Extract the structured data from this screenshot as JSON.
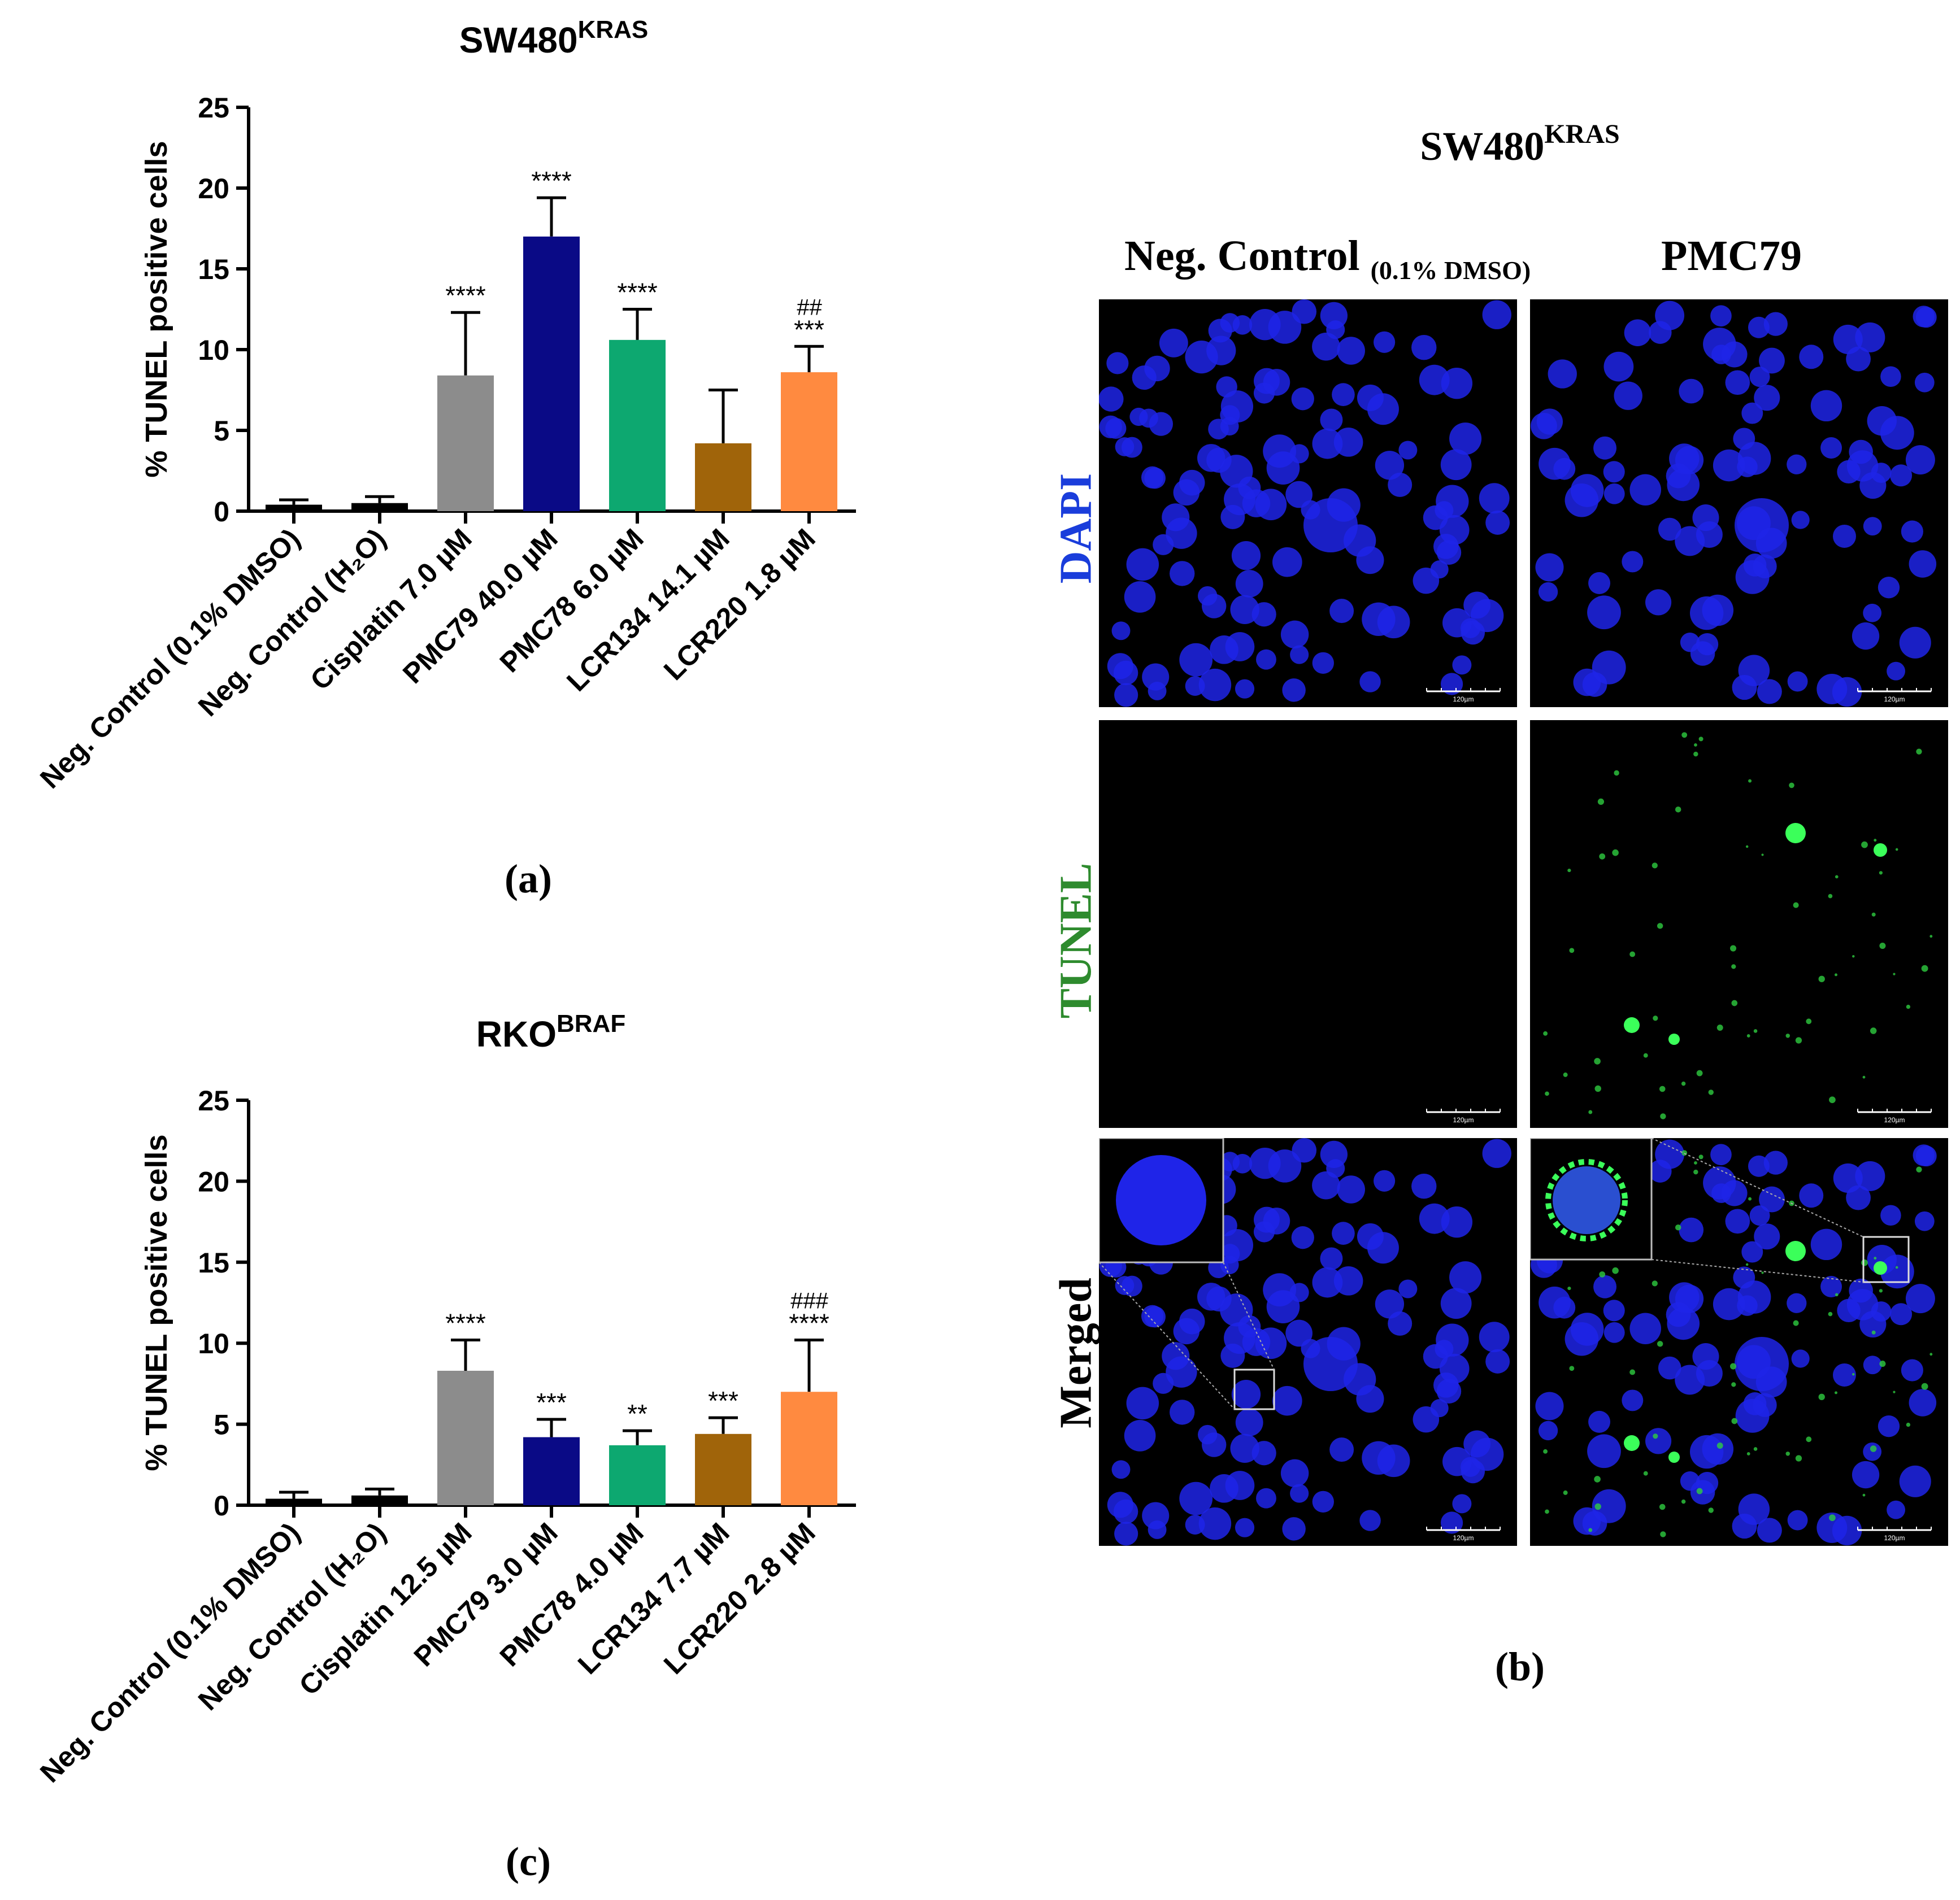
{
  "colors": {
    "black": "#000000",
    "gray": "#8c8c8c",
    "navy": "#0a0a86",
    "green": "#0da870",
    "brown": "#a0640a",
    "orange": "#ff8a40",
    "dapi": "#1a3ddb",
    "tunel": "#2e8b2e",
    "nucleus": "#1f24e8"
  },
  "panels": {
    "a": "(a)",
    "b": "(b)",
    "c": "(c)"
  },
  "chart_data": [
    {
      "type": "bar",
      "title_main": "SW480",
      "title_sup": "KRAS",
      "ylabel": "% TUNEL positive cells",
      "ylim": [
        0,
        25
      ],
      "yticks": [
        "0",
        "5",
        "10",
        "15",
        "20",
        "25"
      ],
      "categories": [
        "Neg. Control (0.1% DMSO)",
        "Neg. Control (H₂O)",
        "Cisplatin 7.0 µM",
        "PMC79 40.0 µM",
        "PMC78 6.0 µM",
        "LCR134 14.1 µM",
        "LCR220 1.8 µM"
      ],
      "values": [
        0.4,
        0.5,
        8.4,
        17.0,
        10.6,
        4.2,
        8.6
      ],
      "errors": [
        0.3,
        0.4,
        3.9,
        2.4,
        1.9,
        3.3,
        1.6
      ],
      "colors": [
        "#000000",
        "#000000",
        "#8c8c8c",
        "#0a0a86",
        "#0da870",
        "#a0640a",
        "#ff8a40"
      ],
      "annotations": [
        "",
        "",
        "****",
        "****",
        "****",
        "",
        "***"
      ],
      "annotations2": [
        "",
        "",
        "",
        "",
        "",
        "",
        "##"
      ],
      "grid": false
    },
    {
      "type": "bar",
      "title_main": "RKO",
      "title_sup": "BRAF",
      "ylabel": "% TUNEL positive cells",
      "ylim": [
        0,
        25
      ],
      "yticks": [
        "0",
        "5",
        "10",
        "15",
        "20",
        "25"
      ],
      "categories": [
        "Neg. Control (0.1% DMSO)",
        "Neg. Control (H₂O)",
        "Cisplatin 12.5 µM",
        "PMC79 3.0 µM",
        "PMC78 4.0 µM",
        "LCR134 7.7 µM",
        "LCR220 2.8 µM"
      ],
      "values": [
        0.4,
        0.6,
        8.3,
        4.2,
        3.7,
        4.4,
        7.0
      ],
      "errors": [
        0.4,
        0.4,
        1.9,
        1.1,
        0.9,
        1.0,
        3.2
      ],
      "colors": [
        "#000000",
        "#000000",
        "#8c8c8c",
        "#0a0a86",
        "#0da870",
        "#a0640a",
        "#ff8a40"
      ],
      "annotations": [
        "",
        "",
        "****",
        "***",
        "**",
        "***",
        "****"
      ],
      "annotations2": [
        "",
        "",
        "",
        "",
        "",
        "",
        "###"
      ],
      "grid": false
    }
  ],
  "microscopy": {
    "title_main": "SW480",
    "title_sup": "KRAS",
    "columns": {
      "neg_main": "Neg. Control",
      "neg_sub": "(0.1% DMSO)",
      "treated": "PMC79"
    },
    "rows": [
      "DAPI",
      "TUNEL",
      "Merged"
    ],
    "scale_label": "120µm"
  }
}
